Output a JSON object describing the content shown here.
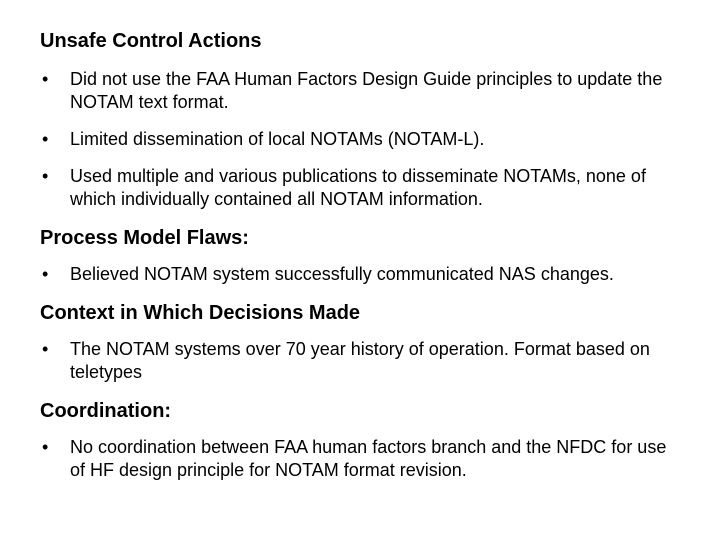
{
  "background_color": "#ffffff",
  "text_color": "#000000",
  "heading_fontsize": 20,
  "body_fontsize": 18,
  "font_family": "Arial",
  "sections": [
    {
      "heading": "Unsafe Control Actions",
      "items": [
        "Did not use the FAA Human Factors Design Guide principles to update the NOTAM text format.",
        "Limited dissemination of local NOTAMs (NOTAM-L).",
        "Used multiple and various publications to disseminate NOTAMs, none of which individually contained all NOTAM information."
      ]
    },
    {
      "heading": "Process Model Flaws:",
      "items": [
        "Believed NOTAM system successfully communicated NAS changes."
      ]
    },
    {
      "heading": "Context in Which Decisions Made",
      "items": [
        "The NOTAM systems over 70 year history of operation. Format based on teletypes"
      ]
    },
    {
      "heading": "Coordination:",
      "items": [
        "No coordination between FAA human factors branch and the NFDC for use of HF design principle for NOTAM format revision."
      ]
    }
  ]
}
